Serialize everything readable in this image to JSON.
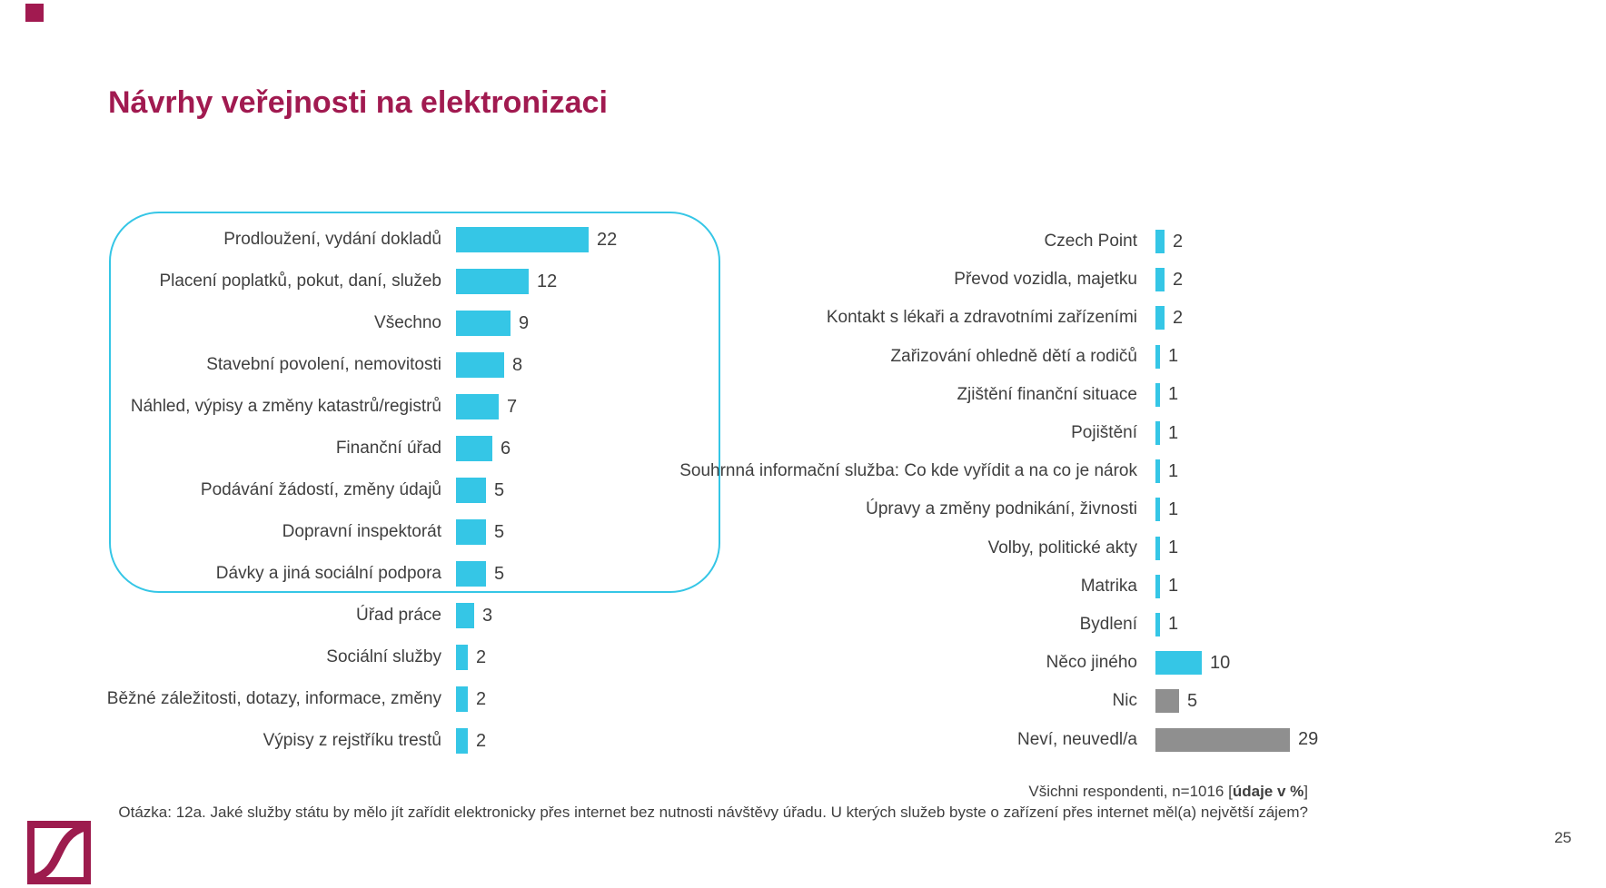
{
  "slide": {
    "title": "Návrhy veřejnosti na elektronizaci",
    "page_number": "25",
    "footnote_line1": {
      "prefix": "Všichni respondenti, n=1016 [",
      "bold": "údaje v %",
      "suffix": "]"
    },
    "footnote_line2": "Otázka: 12a. Jaké služby státu by mělo jít zařídit elektronicky přes internet bez nutnosti návštěvy úřadu. U kterých služeb byste o zařízení přes internet měl(a) největší zájem?"
  },
  "colors": {
    "brand_magenta": "#A11A50",
    "bar_cyan": "#35C6E6",
    "bar_gray": "#8F8F8F",
    "text_dark": "#3F3F3F",
    "highlight_border": "#35C6E6"
  },
  "chart_data": [
    {
      "type": "bar",
      "orientation": "horizontal",
      "value_unit": "%",
      "grid": false,
      "axis": "none",
      "value_labels_shown": true,
      "categories": [
        "Prodloužení, vydání dokladů",
        "Placení poplatků, pokut, daní, služeb",
        "Všechno",
        "Stavební povolení, nemovitosti",
        "Náhled, výpisy a změny katastrů/registrů",
        "Finanční úřad",
        "Podávání žádostí, změny údajů",
        "Dopravní inspektorát",
        "Dávky a jiná sociální podpora",
        "Úřad práce",
        "Sociální služby",
        "Běžné záležitosti, dotazy, informace, změny",
        "Výpisy z rejstříku trestů"
      ],
      "values": [
        22,
        12,
        9,
        8,
        7,
        6,
        5,
        5,
        5,
        3,
        2,
        2,
        2
      ],
      "bar_color": "#35C6E6",
      "highlight_box": {
        "first_row": 0,
        "last_row": 8
      }
    },
    {
      "type": "bar",
      "orientation": "horizontal",
      "value_unit": "%",
      "grid": false,
      "axis": "none",
      "value_labels_shown": true,
      "categories": [
        "Czech Point",
        "Převod vozidla, majetku",
        "Kontakt s lékaři a zdravotními zařízeními",
        "Zařizování ohledně dětí a rodičů",
        "Zjištění finanční situace",
        "Pojištění",
        "Souhrnná informační služba: Co kde vyřídit a na co je nárok",
        "Úpravy a změny podnikání, živnosti",
        "Volby, politické akty",
        "Matrika",
        "Bydlení",
        "Něco jiného",
        "Nic",
        "Neví, neuvedl/a"
      ],
      "values": [
        2,
        2,
        2,
        1,
        1,
        1,
        1,
        1,
        1,
        1,
        1,
        10,
        5,
        29
      ],
      "bar_color": "#35C6E6",
      "colors": [
        "#35C6E6",
        "#35C6E6",
        "#35C6E6",
        "#35C6E6",
        "#35C6E6",
        "#35C6E6",
        "#35C6E6",
        "#35C6E6",
        "#35C6E6",
        "#35C6E6",
        "#35C6E6",
        "#35C6E6",
        "#8F8F8F",
        "#8F8F8F"
      ]
    }
  ]
}
